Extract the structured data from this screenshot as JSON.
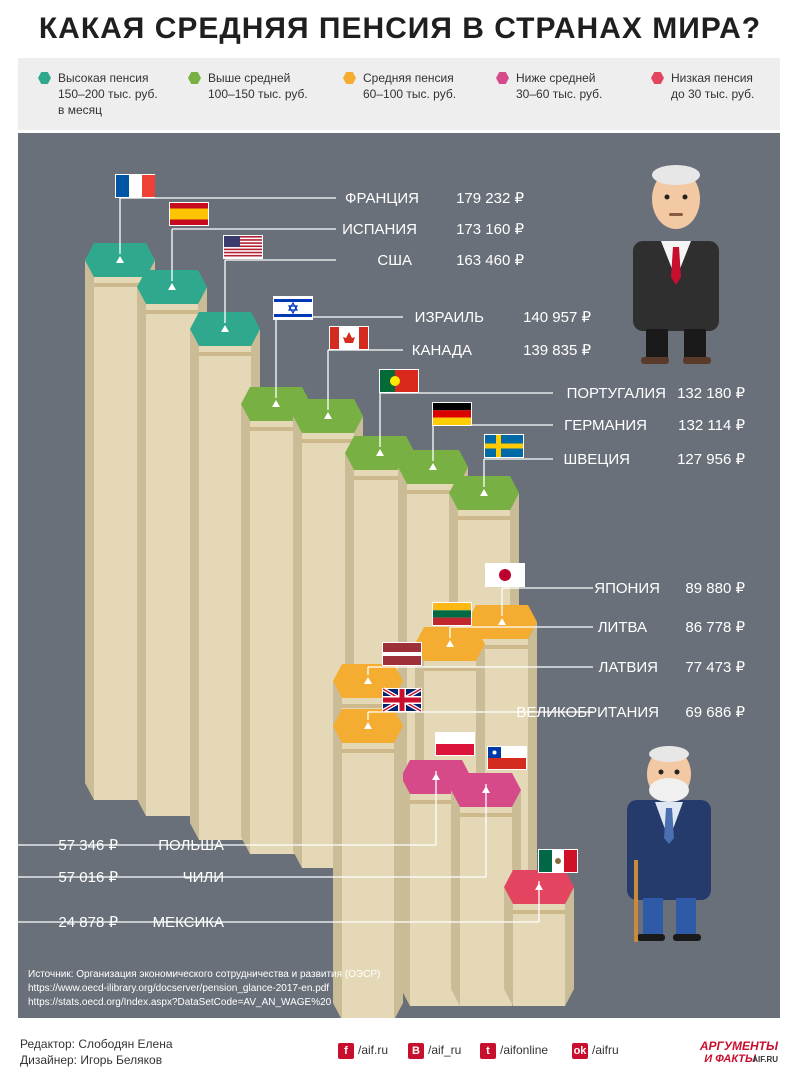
{
  "title": "КАКАЯ СРЕДНЯЯ ПЕНСИЯ В СТРАНАХ МИРА?",
  "legend": [
    {
      "label": "Высокая пенсия\n150–200 тыс. руб.\nв месяц",
      "color": "#2fa88e"
    },
    {
      "label": "Выше средней\n100–150 тыс. руб.",
      "color": "#78b043"
    },
    {
      "label": "Средняя пенсия\n60–100 тыс. руб.",
      "color": "#f4ac31"
    },
    {
      "label": "Ниже средней\n30–60 тыс. руб.",
      "color": "#d64a8a"
    },
    {
      "label": "Низкая пенсия\nдо 30 тыс. руб.",
      "color": "#e34560"
    }
  ],
  "colors": {
    "panel": "#6a7079",
    "column_front": "#e4d8b7",
    "column_side": "#c9bc97",
    "band": "#cdb98c"
  },
  "chart_data": {
    "type": "bar",
    "categories": [
      "ФРАНЦИЯ",
      "ИСПАНИЯ",
      "США",
      "ИЗРАИЛЬ",
      "КАНАДА",
      "ПОРТУГАЛИЯ",
      "ГЕРМАНИЯ",
      "ШВЕЦИЯ",
      "ЯПОНИЯ",
      "ЛИТВА",
      "ЛАТВИЯ",
      "ВЕЛИКОБРИТАНИЯ",
      "ПОЛЬША",
      "ЧИЛИ",
      "МЕКСИКА"
    ],
    "values": [
      179232,
      173160,
      163460,
      140957,
      139835,
      132180,
      132114,
      127956,
      89880,
      86778,
      77473,
      69686,
      57346,
      57016,
      24878
    ],
    "value_labels": [
      "179 232 ₽",
      "173 160 ₽",
      "163 460 ₽",
      "140 957 ₽",
      "139 835 ₽",
      "132 180 ₽",
      "132 114 ₽",
      "127 956 ₽",
      "89 880 ₽",
      "86 778 ₽",
      "77 473 ₽",
      "69 686 ₽",
      "57 346 ₽",
      "57 016 ₽",
      "24 878 ₽"
    ],
    "categories_color": [
      "high",
      "high",
      "high",
      "above",
      "above",
      "above",
      "above",
      "above",
      "avg",
      "avg",
      "avg",
      "avg",
      "below",
      "below",
      "low"
    ],
    "unit": "₽"
  },
  "source": {
    "line1": "Источник: Организация экономического сотрудничества и развития (ОЭСР)",
    "line2": "https://www.oecd-ilibrary.org/docserver/pension_glance-2017-en.pdf",
    "line3": "https://stats.oecd.org/Index.aspx?DataSetCode=AV_AN_WAGE%20"
  },
  "credits": {
    "editor": "Редактор: Слободян Елена",
    "designer": "Дизайнер: Игорь Беляков"
  },
  "social": [
    {
      "icon": "f",
      "label": "/aif.ru",
      "name": "facebook-icon"
    },
    {
      "icon": "В",
      "label": "/aif_ru",
      "name": "vk-icon"
    },
    {
      "icon": "t",
      "label": "/aifonline",
      "name": "twitter-icon"
    },
    {
      "icon": "ok",
      "label": "/aifru",
      "name": "ok-icon"
    }
  ],
  "logo": {
    "line1": "АРГУМЕНТЫ",
    "line2": "И ФАКТЫ",
    "site": "AIF.RU"
  }
}
